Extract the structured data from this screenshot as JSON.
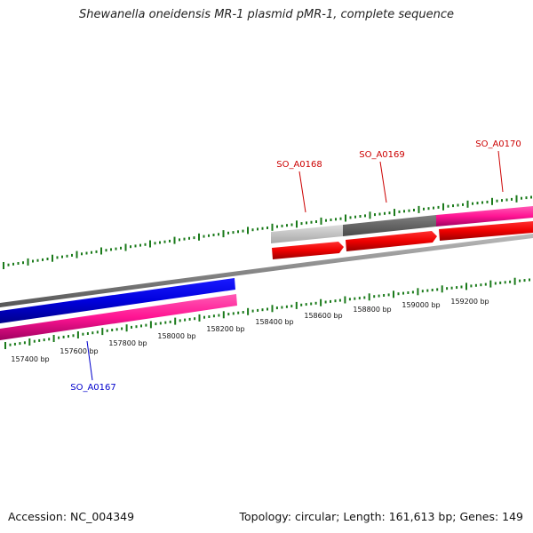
{
  "title": "Shewanella oneidensis MR-1 plasmid pMR-1, complete sequence",
  "footer": {
    "accession": "Accession: NC_004349",
    "summary": "Topology: circular; Length: 161,613 bp; Genes: 149"
  },
  "colors": {
    "tick": "#1a7a1a",
    "gene_label_red": "#cc0000",
    "gene_label_blue": "#0000cc",
    "backbone": "#808080"
  },
  "scale_labels": [
    "157400 bp",
    "157600 bp",
    "157800 bp",
    "158000 bp",
    "158200 bp",
    "158400 bp",
    "158600 bp",
    "158800 bp",
    "159000 bp",
    "159200 bp"
  ],
  "genes": [
    {
      "name": "SO_A0167",
      "strand": "reverse",
      "color": "blue"
    },
    {
      "name": "SO_A0168",
      "strand": "forward",
      "color": "red"
    },
    {
      "name": "SO_A0169",
      "strand": "forward",
      "color": "red"
    },
    {
      "name": "SO_A0170",
      "strand": "forward",
      "color": "red"
    }
  ]
}
